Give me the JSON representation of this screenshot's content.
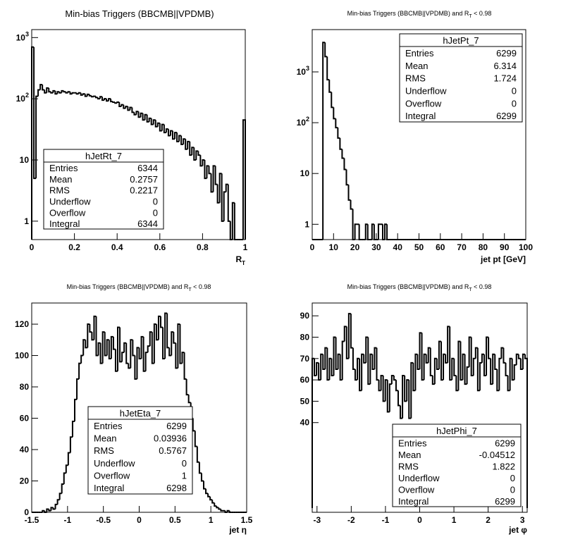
{
  "chart_data": [
    {
      "type": "histogram",
      "title": "Min-bias Triggers (BBCMB||VPDMB)",
      "x_label": "R",
      "x_label_sub": "T",
      "log_y": true,
      "color": "#000000",
      "xlim": [
        0,
        1
      ],
      "xticks": [
        0,
        0.2,
        0.4,
        0.6,
        0.8,
        1
      ],
      "ylim": [
        0.5,
        1350
      ],
      "yticks": [
        1,
        10,
        {
          "value": 100,
          "label": "10",
          "sup": "2"
        },
        {
          "value": 1000,
          "label": "10",
          "sup": "3"
        }
      ],
      "bins": [
        0,
        0.01,
        0.02,
        0.03,
        0.04,
        0.05,
        0.06,
        0.07,
        0.08,
        0.09,
        0.1,
        0.11,
        0.12,
        0.13,
        0.14,
        0.15,
        0.16,
        0.17,
        0.18,
        0.19,
        0.2,
        0.21,
        0.22,
        0.23,
        0.24,
        0.25,
        0.26,
        0.27,
        0.28,
        0.29,
        0.3,
        0.31,
        0.32,
        0.33,
        0.34,
        0.35,
        0.36,
        0.37,
        0.38,
        0.39,
        0.4,
        0.41,
        0.42,
        0.43,
        0.44,
        0.45,
        0.46,
        0.47,
        0.48,
        0.49,
        0.5,
        0.51,
        0.52,
        0.53,
        0.54,
        0.55,
        0.56,
        0.57,
        0.58,
        0.59,
        0.6,
        0.61,
        0.62,
        0.63,
        0.64,
        0.65,
        0.66,
        0.67,
        0.68,
        0.69,
        0.7,
        0.71,
        0.72,
        0.73,
        0.74,
        0.75,
        0.76,
        0.77,
        0.78,
        0.79,
        0.8,
        0.81,
        0.82,
        0.83,
        0.84,
        0.85,
        0.86,
        0.87,
        0.88,
        0.89,
        0.9,
        0.91,
        0.92,
        0.93,
        0.94,
        0.95,
        0.96,
        0.97,
        0.98,
        0.99,
        1
      ],
      "values": [
        700,
        5,
        110,
        140,
        170,
        140,
        125,
        150,
        130,
        125,
        135,
        120,
        130,
        125,
        135,
        130,
        125,
        130,
        120,
        125,
        125,
        120,
        125,
        115,
        120,
        110,
        118,
        112,
        108,
        110,
        105,
        100,
        108,
        95,
        100,
        92,
        100,
        90,
        88,
        85,
        88,
        75,
        80,
        70,
        75,
        65,
        72,
        60,
        55,
        62,
        50,
        58,
        45,
        55,
        42,
        48,
        38,
        45,
        35,
        40,
        30,
        38,
        28,
        32,
        25,
        30,
        22,
        28,
        20,
        25,
        18,
        22,
        15,
        20,
        12,
        16,
        10,
        14,
        12,
        8,
        10,
        5,
        8,
        6,
        3,
        8,
        4,
        2,
        6,
        1,
        3,
        4,
        1,
        0,
        2,
        0,
        0,
        0,
        0,
        45
      ],
      "stats": {
        "name": "hJetRt_7",
        "rows": [
          [
            "Entries",
            6344
          ],
          [
            "Mean",
            0.2757
          ],
          [
            "RMS",
            0.2217
          ],
          [
            "Underflow",
            0
          ],
          [
            "Overflow",
            0
          ],
          [
            "Integral",
            6344
          ]
        ]
      }
    },
    {
      "type": "histogram",
      "title": "Min-bias Triggers (BBCMB||VPDMB) and R",
      "title_sub": "T",
      "title_suffix": " < 0.98",
      "x_label": "jet pt [GeV]",
      "log_y": true,
      "color": "#000000",
      "xlim": [
        0,
        100
      ],
      "xticks": [
        0,
        10,
        20,
        30,
        40,
        50,
        60,
        70,
        80,
        90,
        100
      ],
      "ylim": [
        0.5,
        6800
      ],
      "yticks": [
        1,
        10,
        {
          "value": 100,
          "label": "10",
          "sup": "2"
        },
        {
          "value": 1000,
          "label": "10",
          "sup": "3"
        }
      ],
      "bins": [
        0,
        1,
        2,
        3,
        4,
        5,
        6,
        7,
        8,
        9,
        10,
        11,
        12,
        13,
        14,
        15,
        16,
        17,
        18,
        19,
        20,
        21,
        22,
        23,
        24,
        25,
        26,
        27,
        28,
        29,
        30,
        31,
        32,
        33,
        34,
        35,
        36,
        37,
        38,
        39,
        40,
        41,
        42,
        43,
        44,
        45,
        46,
        47,
        48,
        49,
        50,
        51,
        52,
        53,
        54,
        55,
        56,
        57,
        58,
        59,
        60,
        61,
        62,
        63,
        64,
        65,
        66,
        67,
        68,
        69,
        70,
        71,
        72,
        73,
        74,
        75,
        76,
        77,
        78,
        79,
        80,
        81,
        82,
        83,
        84,
        85,
        86,
        87,
        88,
        89,
        90,
        91,
        92,
        93,
        94,
        95,
        96,
        97,
        98,
        99,
        100
      ],
      "values": [
        0,
        0,
        0,
        0,
        0,
        3800,
        2000,
        700,
        400,
        200,
        120,
        80,
        50,
        30,
        20,
        12,
        6,
        3,
        2,
        0,
        1,
        1,
        0,
        0,
        0,
        1,
        0,
        0,
        1,
        0,
        0,
        1,
        1,
        0,
        1,
        0,
        0,
        0,
        0,
        0,
        0,
        0,
        0,
        0,
        0,
        0,
        0,
        0,
        0,
        0,
        0,
        0,
        0,
        0,
        0,
        0,
        0,
        0,
        0,
        0,
        0,
        0,
        0,
        0,
        0,
        0,
        0,
        0,
        0,
        0,
        0,
        0,
        0,
        0,
        0,
        0,
        0,
        0,
        0,
        0,
        0,
        0,
        0,
        0,
        0,
        0,
        0,
        0,
        0,
        0,
        0,
        0,
        0,
        0,
        0,
        0,
        0,
        0,
        0,
        0
      ],
      "stats": {
        "name": "hJetPt_7",
        "rows": [
          [
            "Entries",
            6299
          ],
          [
            "Mean",
            6.314
          ],
          [
            "RMS",
            1.724
          ],
          [
            "Underflow",
            0
          ],
          [
            "Overflow",
            0
          ],
          [
            "Integral",
            6299
          ]
        ]
      }
    },
    {
      "type": "histogram",
      "title": "Min-bias Triggers (BBCMB||VPDMB) and R",
      "title_sub": "T",
      "title_suffix": " < 0.98",
      "x_label": "jet η",
      "log_y": false,
      "color": "#000000",
      "xlim": [
        -1.5,
        1.5
      ],
      "xticks": [
        -1.5,
        -1,
        -0.5,
        0,
        0.5,
        1,
        1.5
      ],
      "ylim": [
        0,
        133.5
      ],
      "yticks": [
        0,
        20,
        40,
        60,
        80,
        100,
        120
      ],
      "bins": [
        -1.5,
        -1.47,
        -1.44,
        -1.41,
        -1.38,
        -1.35,
        -1.32,
        -1.29,
        -1.26,
        -1.23,
        -1.2,
        -1.17,
        -1.14,
        -1.11,
        -1.08,
        -1.05,
        -1.02,
        -0.99,
        -0.96,
        -0.93,
        -0.9,
        -0.87,
        -0.84,
        -0.81,
        -0.78,
        -0.75,
        -0.72,
        -0.69,
        -0.66,
        -0.63,
        -0.6,
        -0.57,
        -0.54,
        -0.51,
        -0.48,
        -0.45,
        -0.42,
        -0.39,
        -0.36,
        -0.33,
        -0.3,
        -0.27,
        -0.24,
        -0.21,
        -0.18,
        -0.15,
        -0.12,
        -0.09,
        -0.06,
        -0.03,
        0,
        0.03,
        0.06,
        0.09,
        0.12,
        0.15,
        0.18,
        0.21,
        0.24,
        0.27,
        0.3,
        0.33,
        0.36,
        0.39,
        0.42,
        0.45,
        0.48,
        0.51,
        0.54,
        0.57,
        0.6,
        0.63,
        0.66,
        0.69,
        0.72,
        0.75,
        0.78,
        0.81,
        0.84,
        0.87,
        0.9,
        0.93,
        0.96,
        0.99,
        1.02,
        1.05,
        1.08,
        1.11,
        1.14,
        1.17,
        1.2,
        1.23,
        1.26,
        1.29,
        1.32,
        1.35,
        1.38,
        1.41,
        1.44,
        1.47,
        1.5
      ],
      "values": [
        0,
        0,
        0,
        0,
        0,
        1,
        0,
        2,
        1,
        3,
        2,
        5,
        8,
        12,
        18,
        25,
        30,
        38,
        48,
        58,
        72,
        85,
        95,
        100,
        110,
        105,
        120,
        115,
        110,
        125,
        100,
        108,
        95,
        115,
        100,
        110,
        98,
        112,
        104,
        90,
        118,
        96,
        102,
        108,
        95,
        92,
        110,
        100,
        85,
        105,
        98,
        112,
        90,
        102,
        106,
        115,
        95,
        120,
        110,
        125,
        118,
        98,
        127,
        105,
        100,
        115,
        108,
        92,
        120,
        95,
        102,
        85,
        75,
        70,
        60,
        52,
        42,
        32,
        25,
        20,
        15,
        12,
        10,
        8,
        6,
        4,
        3,
        2,
        1,
        1,
        0,
        1,
        0,
        0,
        0,
        0,
        0,
        0,
        0,
        0
      ],
      "stats": {
        "name": "hJetEta_7",
        "rows": [
          [
            "Entries",
            6299
          ],
          [
            "Mean",
            0.03936
          ],
          [
            "RMS",
            0.5767
          ],
          [
            "Underflow",
            0
          ],
          [
            "Overflow",
            1
          ],
          [
            "Integral",
            6298
          ]
        ]
      }
    },
    {
      "type": "histogram",
      "title": "Min-bias Triggers (BBCMB||VPDMB) and R",
      "title_sub": "T",
      "title_suffix": " < 0.98",
      "x_label": "jet φ",
      "log_y": false,
      "color": "#000000",
      "xlim": [
        -3.14,
        3.14
      ],
      "xticks": [
        -3,
        -2,
        -1,
        0,
        1,
        2,
        3
      ],
      "ylim": [
        -2,
        96
      ],
      "yticks": [
        40,
        50,
        60,
        70,
        80,
        90
      ],
      "bins": [
        -3.14,
        -3.0772,
        -3.0144,
        -2.9516,
        -2.8888,
        -2.826,
        -2.7632,
        -2.7004,
        -2.6376,
        -2.5748,
        -2.512,
        -2.4492,
        -2.3864,
        -2.3236,
        -2.2608,
        -2.198,
        -2.1352,
        -2.0724,
        -2.0096,
        -1.9468,
        -1.884,
        -1.8212,
        -1.7584,
        -1.6956,
        -1.6328,
        -1.57,
        -1.5072,
        -1.4444,
        -1.3816,
        -1.3188,
        -1.256,
        -1.1932,
        -1.1304,
        -1.0676,
        -1.0048,
        -0.942,
        -0.8792,
        -0.8164,
        -0.7536,
        -0.6908,
        -0.628,
        -0.5652,
        -0.5024,
        -0.4396,
        -0.3768,
        -0.314,
        -0.2512,
        -0.1884,
        -0.1256,
        -0.0628,
        0,
        0.0628,
        0.1256,
        0.1884,
        0.2512,
        0.314,
        0.3768,
        0.4396,
        0.5024,
        0.5652,
        0.628,
        0.6908,
        0.7536,
        0.8164,
        0.8792,
        0.942,
        1.0048,
        1.0676,
        1.1304,
        1.1932,
        1.256,
        1.3188,
        1.3816,
        1.4444,
        1.5072,
        1.57,
        1.6328,
        1.6956,
        1.7584,
        1.8212,
        1.884,
        1.9468,
        2.0096,
        2.0724,
        2.1352,
        2.198,
        2.2608,
        2.3236,
        2.3864,
        2.4492,
        2.512,
        2.5748,
        2.6376,
        2.7004,
        2.7632,
        2.826,
        2.8888,
        2.9516,
        3.0144,
        3.0772,
        3.14
      ],
      "values": [
        70,
        62,
        68,
        60,
        72,
        65,
        75,
        60,
        70,
        62,
        80,
        65,
        72,
        60,
        78,
        85,
        70,
        91,
        75,
        65,
        60,
        70,
        55,
        72,
        68,
        80,
        58,
        72,
        65,
        75,
        60,
        55,
        62,
        50,
        60,
        45,
        58,
        62,
        60,
        55,
        48,
        42,
        62,
        50,
        60,
        42,
        68,
        55,
        72,
        65,
        82,
        60,
        72,
        68,
        75,
        62,
        58,
        70,
        65,
        78,
        60,
        72,
        68,
        85,
        60,
        70,
        62,
        55,
        78,
        60,
        72,
        58,
        66,
        80,
        62,
        70,
        75,
        55,
        68,
        72,
        62,
        80,
        70,
        58,
        72,
        65,
        55,
        70,
        75,
        68,
        62,
        55,
        70,
        60,
        67,
        72,
        70,
        65,
        72,
        70
      ],
      "stats": {
        "name": "hJetPhi_7",
        "rows": [
          [
            "Entries",
            6299
          ],
          [
            "Mean",
            -0.04512
          ],
          [
            "RMS",
            1.822
          ],
          [
            "Underflow",
            0
          ],
          [
            "Overflow",
            0
          ],
          [
            "Integral",
            6299
          ]
        ]
      }
    }
  ]
}
